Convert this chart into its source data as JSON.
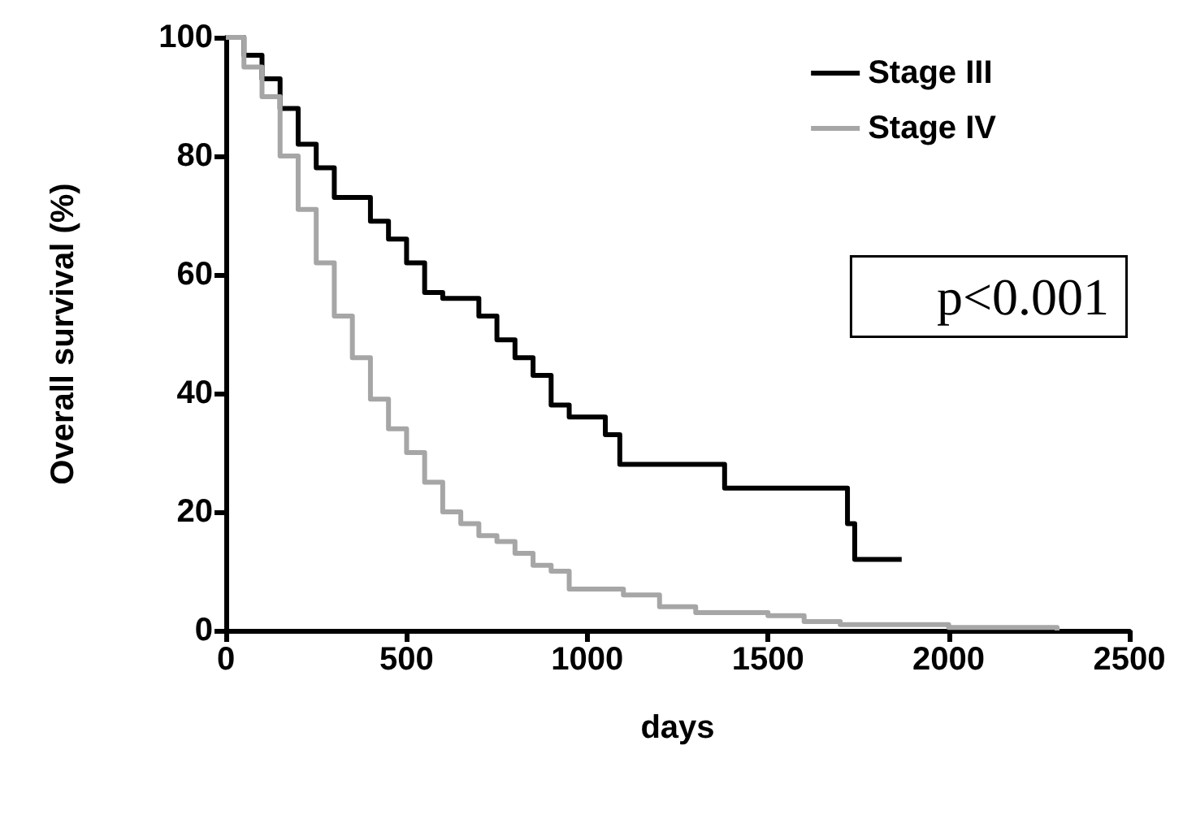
{
  "chart_data": {
    "type": "step",
    "xlabel": "days",
    "ylabel": "Overall survival (%)",
    "xlim": [
      0,
      2500
    ],
    "xticks": [
      0,
      500,
      1000,
      1500,
      2000,
      2500
    ],
    "ylim": [
      0,
      100
    ],
    "yticks": [
      0,
      20,
      40,
      60,
      80,
      100
    ],
    "grid": false,
    "legend": "top right",
    "marker": "none",
    "annotations": [
      "p<0.001"
    ],
    "series": [
      {
        "name": "Stage III",
        "color": "#000000",
        "x": [
          0,
          50,
          100,
          150,
          200,
          250,
          300,
          400,
          450,
          500,
          550,
          600,
          650,
          700,
          750,
          800,
          850,
          900,
          950,
          1000,
          1050,
          1090,
          1200,
          1300,
          1370,
          1380,
          1500,
          1700,
          1720,
          1740,
          1870
        ],
        "values": [
          100,
          97,
          93,
          88,
          82,
          78,
          73,
          69,
          66,
          62,
          57,
          56,
          56,
          53,
          49,
          46,
          43,
          38,
          36,
          36,
          33,
          28,
          28,
          28,
          28,
          24,
          24,
          24,
          18,
          12,
          12
        ]
      },
      {
        "name": "Stage IV",
        "color": "#a6a6a6",
        "x": [
          0,
          50,
          100,
          150,
          200,
          250,
          300,
          350,
          400,
          450,
          500,
          550,
          600,
          650,
          700,
          750,
          800,
          850,
          900,
          950,
          1000,
          1100,
          1200,
          1300,
          1400,
          1500,
          1600,
          1700,
          1800,
          2000,
          2300
        ],
        "values": [
          100,
          95,
          90,
          80,
          71,
          62,
          53,
          46,
          39,
          34,
          30,
          25,
          20,
          18,
          16,
          15,
          13,
          11,
          10,
          7,
          7,
          6,
          4,
          3,
          3,
          2.5,
          1.5,
          1,
          1,
          0.5,
          0
        ]
      }
    ]
  }
}
